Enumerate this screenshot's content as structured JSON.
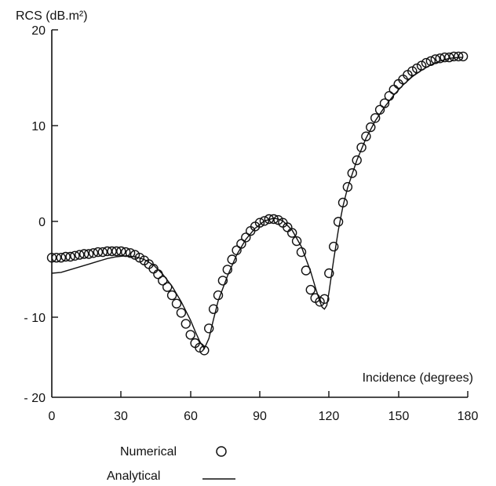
{
  "chart_data": {
    "type": "line",
    "ylabel": "RCS (dB.m²)",
    "xlabel": "Incidence (degrees)",
    "xlim": [
      0,
      180
    ],
    "ylim": [
      -20,
      20
    ],
    "x_ticks": [
      "0",
      "30",
      "60",
      "90",
      "120",
      "150",
      "180"
    ],
    "y_ticks": [
      "20",
      "10",
      "0",
      "- 10",
      "- 20"
    ],
    "y_tick_values": [
      20,
      10,
      0,
      -10,
      -20
    ],
    "x_tick_values": [
      0,
      30,
      60,
      90,
      120,
      150,
      180
    ],
    "grid": false,
    "legend_position": "bottom",
    "series": [
      {
        "name": "Numerical",
        "style": "markers",
        "marker": "circle",
        "x": [
          0,
          2,
          4,
          6,
          8,
          10,
          12,
          14,
          16,
          18,
          20,
          22,
          24,
          26,
          28,
          30,
          32,
          34,
          36,
          38,
          40,
          42,
          44,
          46,
          48,
          50,
          52,
          54,
          56,
          58,
          60,
          62,
          64,
          66,
          68,
          70,
          72,
          74,
          76,
          78,
          80,
          82,
          84,
          86,
          88,
          90,
          92,
          94,
          96,
          98,
          100,
          102,
          104,
          106,
          108,
          110,
          112,
          114,
          116,
          118,
          120,
          122,
          124,
          126,
          128,
          130,
          132,
          134,
          136,
          138,
          140,
          142,
          144,
          146,
          148,
          150,
          152,
          154,
          156,
          158,
          160,
          162,
          164,
          166,
          168,
          170,
          172,
          174,
          176,
          178
        ],
        "y": [
          -4.8,
          -4.8,
          -4.8,
          -4.7,
          -4.7,
          -4.6,
          -4.5,
          -4.4,
          -4.4,
          -4.3,
          -4.2,
          -4.2,
          -4.1,
          -4.1,
          -4.1,
          -4.1,
          -4.2,
          -4.3,
          -4.5,
          -4.8,
          -5.1,
          -5.5,
          -6.0,
          -6.6,
          -7.3,
          -8.0,
          -8.9,
          -9.8,
          -10.8,
          -12.0,
          -13.2,
          -14.1,
          -14.6,
          -14.9,
          -12.5,
          -10.4,
          -8.9,
          -7.3,
          -6.1,
          -5.0,
          -4.0,
          -3.3,
          -2.6,
          -1.9,
          -1.4,
          -1.0,
          -0.8,
          -0.6,
          -0.6,
          -0.7,
          -1.0,
          -1.5,
          -2.1,
          -3.0,
          -4.2,
          -6.2,
          -8.3,
          -9.2,
          -9.6,
          -9.3,
          -6.5,
          -3.6,
          -0.9,
          1.2,
          2.9,
          4.4,
          5.8,
          7.2,
          8.4,
          9.4,
          10.4,
          11.3,
          12.0,
          12.8,
          13.5,
          14.1,
          14.6,
          15.1,
          15.5,
          15.8,
          16.1,
          16.4,
          16.6,
          16.8,
          16.9,
          17.0,
          17.0,
          17.1,
          17.1,
          17.1
        ]
      },
      {
        "name": "Analytical",
        "style": "line",
        "x": [
          0,
          4,
          8,
          12,
          16,
          20,
          24,
          28,
          32,
          36,
          40,
          44,
          48,
          52,
          56,
          60,
          62,
          64,
          66,
          68,
          70,
          72,
          76,
          80,
          84,
          88,
          92,
          96,
          98,
          100,
          104,
          108,
          112,
          114,
          116,
          117,
          118,
          119,
          120,
          122,
          124,
          126,
          128,
          132,
          136,
          140,
          144,
          148,
          152,
          156,
          160,
          164,
          168,
          172,
          176,
          178
        ],
        "y": [
          -6.5,
          -6.4,
          -6.1,
          -5.8,
          -5.5,
          -5.2,
          -4.9,
          -4.7,
          -4.6,
          -4.7,
          -5.0,
          -5.6,
          -6.6,
          -7.9,
          -9.6,
          -11.6,
          -12.8,
          -13.9,
          -14.7,
          -13.6,
          -11.5,
          -9.5,
          -6.8,
          -4.5,
          -2.8,
          -1.6,
          -0.8,
          -0.5,
          -0.6,
          -0.8,
          -1.8,
          -3.6,
          -6.3,
          -8.0,
          -9.6,
          -10.2,
          -10.4,
          -10.0,
          -8.5,
          -5.0,
          -1.8,
          0.8,
          2.8,
          5.8,
          8.2,
          10.1,
          11.6,
          12.9,
          14.0,
          14.9,
          15.6,
          16.2,
          16.6,
          16.9,
          17.0,
          17.0
        ]
      }
    ]
  }
}
